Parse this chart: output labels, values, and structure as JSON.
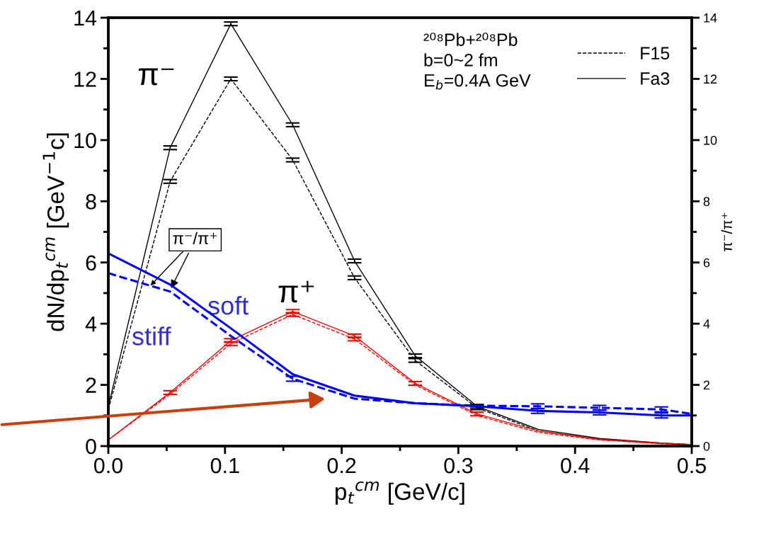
{
  "chart_data": {
    "type": "line",
    "xlabel": "p$_{t}$$^{cm}$ [GeV/c]",
    "ylabel": "dN/dp$_{t}$$^{cm}$ [GeV$^{−1}$c]",
    "y2label": "π⁻/π⁺",
    "x": [
      0,
      0.053,
      0.105,
      0.158,
      0.211,
      0.263,
      0.316,
      0.368,
      0.421,
      0.474,
      0.5
    ],
    "series": [
      {
        "name": "F15",
        "color": "#000000",
        "line_style": "dashed",
        "values": [
          1.2,
          8.65,
          12.0,
          9.35,
          5.5,
          2.8,
          1.25,
          0.5,
          0.22,
          0.08,
          0.05
        ],
        "errors": [
          null,
          0.06,
          0.06,
          0.06,
          0.06,
          0.06,
          0.06,
          null,
          null,
          null,
          null
        ]
      },
      {
        "name": "Fa3",
        "color": "#000000",
        "line_style": "solid",
        "values": [
          1.3,
          9.75,
          13.8,
          10.5,
          6.05,
          2.95,
          1.3,
          0.55,
          0.25,
          0.1,
          0.05
        ],
        "errors": [
          null,
          0.06,
          0.06,
          0.06,
          0.06,
          0.06,
          0.06,
          null,
          null,
          null,
          null
        ]
      },
      {
        "color": "#ff0000",
        "line_style": "dashed",
        "values": [
          0.2,
          1.7,
          3.35,
          4.3,
          3.5,
          2.0,
          1.0,
          0.45,
          0.2,
          0.08,
          0.04
        ],
        "errors": [
          null,
          null,
          0.06,
          0.06,
          0.06,
          null,
          null,
          null,
          null,
          null,
          null
        ]
      },
      {
        "color": "#ff0000",
        "line_style": "solid",
        "values": [
          0.2,
          1.75,
          3.45,
          4.4,
          3.6,
          2.05,
          1.05,
          0.5,
          0.22,
          0.1,
          0.05
        ],
        "errors": [
          null,
          0.06,
          0.06,
          0.06,
          0.06,
          0.06,
          0.06,
          null,
          null,
          null,
          null
        ]
      },
      {
        "color": "#0000ff",
        "line_style": "dashed",
        "axis": "y2",
        "values": [
          5.65,
          5.05,
          3.6,
          2.2,
          1.55,
          1.4,
          1.32,
          1.3,
          1.25,
          1.2,
          1.05
        ],
        "errors": [
          null,
          null,
          null,
          0.08,
          null,
          null,
          null,
          0.08,
          0.08,
          0.08,
          null
        ]
      },
      {
        "color": "#0000ff",
        "line_style": "solid",
        "axis": "y2",
        "values": [
          6.3,
          5.28,
          3.85,
          2.35,
          1.65,
          1.4,
          1.3,
          1.15,
          1.1,
          1.0,
          1.0
        ],
        "errors": [
          null,
          null,
          null,
          null,
          null,
          null,
          null,
          0.08,
          0.08,
          0.08,
          null
        ]
      }
    ],
    "xlim": [
      0,
      0.5
    ],
    "xticks": [
      {
        "value": 0,
        "label": "0.0"
      },
      0.1,
      0.2,
      0.3,
      0.4,
      0.5
    ],
    "ylim": [
      0,
      14
    ],
    "yticks": [
      0,
      2,
      4,
      6,
      8,
      10,
      12,
      14
    ],
    "y2lim": [
      0,
      14
    ],
    "y2ticks": [
      0,
      2,
      4,
      6,
      8,
      10,
      12,
      14
    ],
    "legend": "top right",
    "grid": false,
    "marker": "none",
    "annotations": [
      "π⁻",
      "π⁺",
      "soft",
      "stiff",
      {
        "text": "π⁻/π⁺",
        "x": 0.053,
        "y": 5.1
      },
      "²⁰⁸Pb+²⁰⁸Pb\nb=0~2 fm\nE$_{b}$=0.4A GeV"
    ]
  }
}
